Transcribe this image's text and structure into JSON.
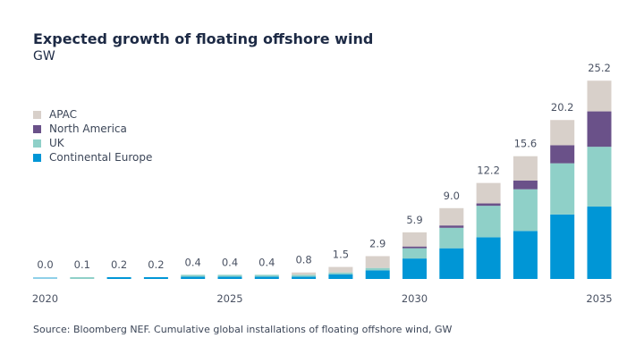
{
  "chart_data": {
    "type": "bar",
    "stacked": true,
    "title": "Expected growth of floating offshore wind",
    "subtitle": "GW",
    "source": "Source: Bloomberg NEF. Cumulative global installations of floating offshore wind, GW",
    "categories": [
      "2020",
      "2021",
      "2022",
      "2023",
      "2024",
      "2025",
      "2026",
      "2027",
      "2028",
      "2029",
      "2030",
      "2031",
      "2032",
      "2033",
      "2034",
      "2035"
    ],
    "x_tick_labels": [
      "2020",
      "2025",
      "2030",
      "2035"
    ],
    "totals": [
      "0.0",
      "0.1",
      "0.2",
      "0.2",
      "0.4",
      "0.4",
      "0.4",
      "0.8",
      "1.5",
      "2.9",
      "5.9",
      "9.0",
      "12.2",
      "15.6",
      "20.2",
      "25.2"
    ],
    "series": [
      {
        "name": "Continental Europe",
        "color": "#0096d6",
        "values": [
          0.0,
          0.0,
          0.2,
          0.2,
          0.3,
          0.3,
          0.3,
          0.3,
          0.6,
          1.1,
          2.6,
          3.9,
          5.3,
          6.1,
          8.2,
          9.2
        ]
      },
      {
        "name": "UK",
        "color": "#8fd0c8",
        "values": [
          0.0,
          0.1,
          0.0,
          0.0,
          0.1,
          0.1,
          0.1,
          0.2,
          0.2,
          0.3,
          1.3,
          2.6,
          4.0,
          5.3,
          6.5,
          7.6
        ]
      },
      {
        "name": "North America",
        "color": "#6a5189",
        "values": [
          0,
          0,
          0,
          0,
          0,
          0,
          0,
          0,
          0,
          0,
          0.2,
          0.3,
          0.3,
          1.1,
          2.3,
          4.5
        ]
      },
      {
        "name": "APAC",
        "color": "#d8d0ca",
        "values": [
          0,
          0,
          0,
          0,
          0,
          0,
          0,
          0.3,
          0.7,
          1.5,
          1.8,
          2.2,
          2.6,
          3.1,
          3.2,
          3.9
        ]
      }
    ],
    "legend_position": "top-left",
    "grid": false
  }
}
